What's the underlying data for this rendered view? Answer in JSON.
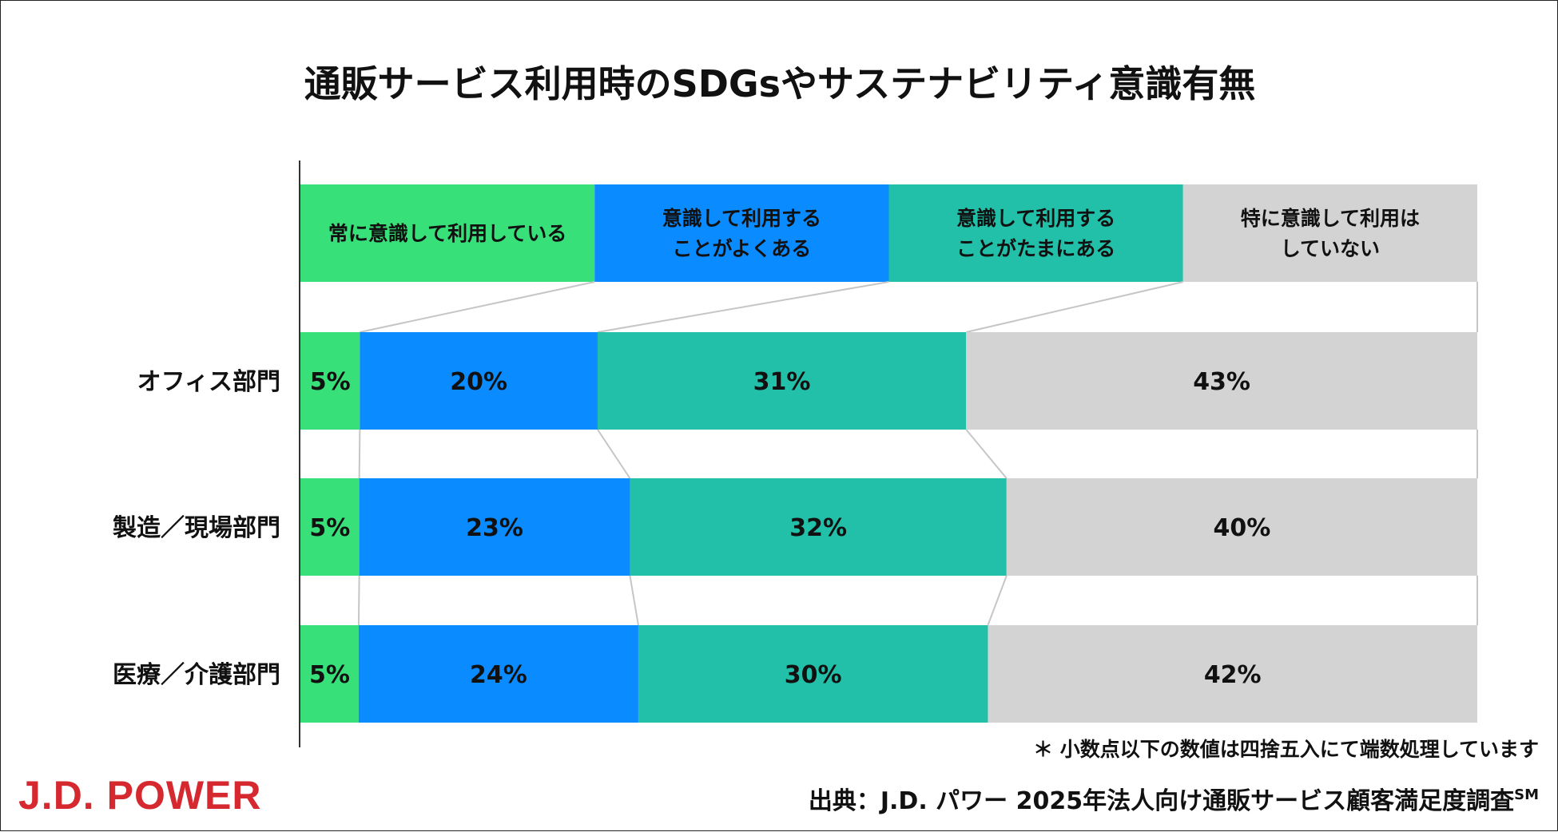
{
  "chart_data": {
    "type": "bar",
    "stacked": true,
    "orientation": "horizontal",
    "title": "通販サービス利用時のSDGsやサステナビリティ意識有無",
    "categories": [
      "オフィス部門",
      "製造／現場部門",
      "医療／介護部門"
    ],
    "series": [
      {
        "name": "常に意識して利用している",
        "name_lines": [
          "常に意識して利用している"
        ],
        "color": "#38e07a",
        "values": [
          5,
          5,
          5
        ],
        "labels": [
          "5%",
          "5%",
          "5%"
        ]
      },
      {
        "name": "意識して利用することがよくある",
        "name_lines": [
          "意識して利用する",
          "ことがよくある"
        ],
        "color": "#0a8bff",
        "values": [
          20,
          23,
          24
        ],
        "labels": [
          "20%",
          "23%",
          "24%"
        ]
      },
      {
        "name": "意識して利用することがたまにある",
        "name_lines": [
          "意識して利用する",
          "ことがたまにある"
        ],
        "color": "#22c0a8",
        "values": [
          31,
          32,
          30
        ],
        "labels": [
          "31%",
          "32%",
          "30%"
        ]
      },
      {
        "name": "特に意識して利用はしていない",
        "name_lines": [
          "特に意識して利用は",
          "していない"
        ],
        "color": "#d3d3d3",
        "values": [
          43,
          40,
          42
        ],
        "labels": [
          "43%",
          "40%",
          "42%"
        ]
      }
    ],
    "xlim": [
      0,
      100
    ],
    "legend_position": "top",
    "grid": false
  },
  "note": "＊ 小数点以下の数値は四捨五入にて端数処理しています",
  "source": "出典：J.D. パワー 2025年法人向け通販サービス顧客満足度調査",
  "source_mark": "SM",
  "logo_text": "J.D. POWER"
}
